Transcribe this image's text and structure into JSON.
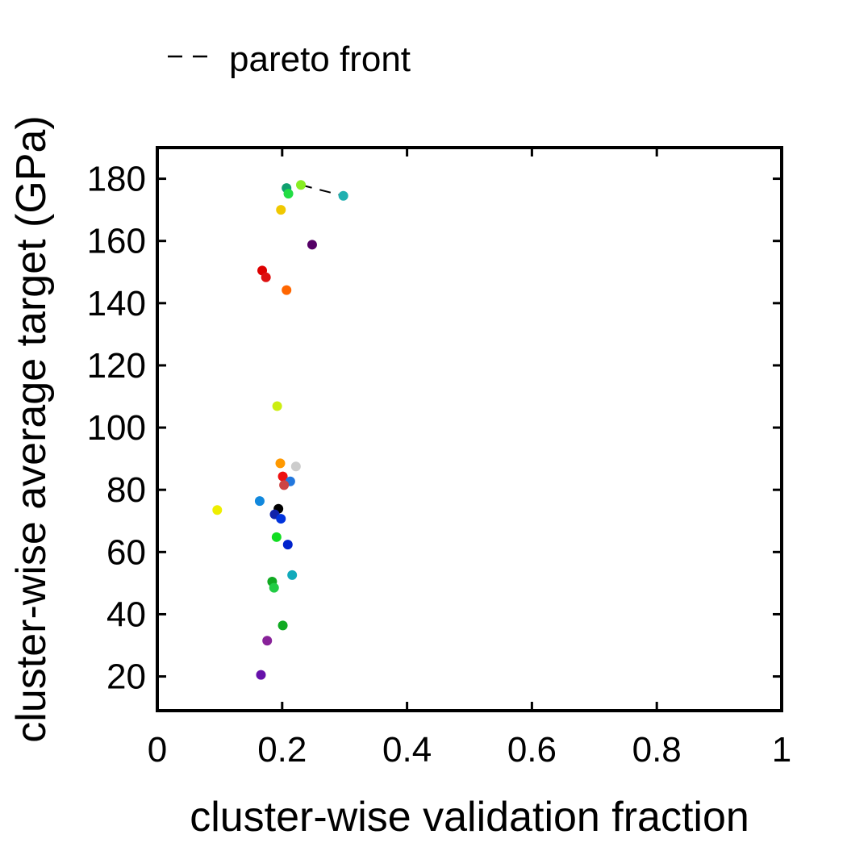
{
  "chart_data": {
    "type": "scatter",
    "title": "",
    "xlabel": "cluster-wise validation fraction",
    "ylabel": "cluster-wise average target (GPa)",
    "xlim": [
      0,
      1
    ],
    "ylim": [
      9,
      190
    ],
    "x_ticks": [
      0,
      0.2,
      0.4,
      0.6,
      0.8,
      1
    ],
    "x_tick_labels": [
      "0",
      "0.2",
      "0.4",
      "0.6",
      "0.8",
      "1"
    ],
    "y_ticks": [
      20,
      40,
      60,
      80,
      100,
      120,
      140,
      160,
      180
    ],
    "y_tick_labels": [
      "20",
      "40",
      "60",
      "80",
      "100",
      "120",
      "140",
      "160",
      "180"
    ],
    "grid": false,
    "legend": {
      "placement": "top-left, above plot",
      "entries": [
        {
          "label": "pareto front",
          "style": "dashed",
          "color": "#000000"
        }
      ]
    },
    "points": [
      {
        "x": 0.207,
        "y": 177.0,
        "color": "#10a070"
      },
      {
        "x": 0.23,
        "y": 178.0,
        "color": "#88ee22"
      },
      {
        "x": 0.298,
        "y": 174.5,
        "color": "#20b0b0"
      },
      {
        "x": 0.21,
        "y": 175.2,
        "color": "#22dd44"
      },
      {
        "x": 0.198,
        "y": 170.0,
        "color": "#f0c800"
      },
      {
        "x": 0.248,
        "y": 158.8,
        "color": "#550066"
      },
      {
        "x": 0.168,
        "y": 150.5,
        "color": "#dd0000"
      },
      {
        "x": 0.174,
        "y": 148.3,
        "color": "#dd1111"
      },
      {
        "x": 0.207,
        "y": 144.2,
        "color": "#ff6600"
      },
      {
        "x": 0.192,
        "y": 106.9,
        "color": "#ccee11"
      },
      {
        "x": 0.197,
        "y": 88.5,
        "color": "#ff9900"
      },
      {
        "x": 0.222,
        "y": 87.5,
        "color": "#cccccc"
      },
      {
        "x": 0.201,
        "y": 84.3,
        "color": "#ee1111"
      },
      {
        "x": 0.213,
        "y": 82.7,
        "color": "#2277dd"
      },
      {
        "x": 0.203,
        "y": 81.5,
        "color": "#cc4444"
      },
      {
        "x": 0.164,
        "y": 76.4,
        "color": "#1188dd"
      },
      {
        "x": 0.096,
        "y": 73.5,
        "color": "#eeee00"
      },
      {
        "x": 0.194,
        "y": 73.9,
        "color": "#000000"
      },
      {
        "x": 0.188,
        "y": 72.1,
        "color": "#1122aa"
      },
      {
        "x": 0.198,
        "y": 70.7,
        "color": "#0033dd"
      },
      {
        "x": 0.191,
        "y": 64.8,
        "color": "#11dd22"
      },
      {
        "x": 0.209,
        "y": 62.4,
        "color": "#0022cc"
      },
      {
        "x": 0.216,
        "y": 52.6,
        "color": "#11aabb"
      },
      {
        "x": 0.184,
        "y": 50.5,
        "color": "#11aa22"
      },
      {
        "x": 0.187,
        "y": 48.5,
        "color": "#22cc44"
      },
      {
        "x": 0.201,
        "y": 36.4,
        "color": "#11aa22"
      },
      {
        "x": 0.176,
        "y": 31.5,
        "color": "#882299"
      },
      {
        "x": 0.166,
        "y": 20.5,
        "color": "#6611aa"
      }
    ],
    "pareto_front": [
      {
        "x": 0.23,
        "y": 178.0
      },
      {
        "x": 0.298,
        "y": 174.5
      }
    ]
  }
}
